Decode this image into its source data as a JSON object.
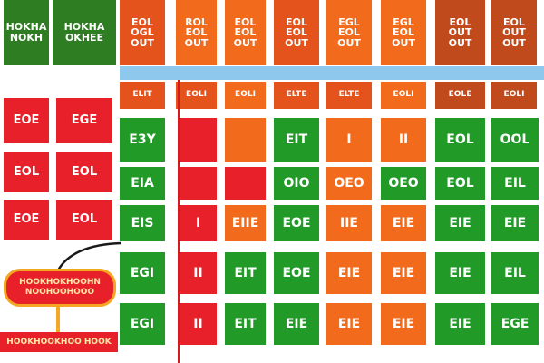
{
  "top_left": [
    {
      "label": "HOKHA\nNOKH"
    },
    {
      "label": "HOKHA\nOKHEE"
    }
  ],
  "columns": [
    {
      "header": "EOL\nOGL\nOUT",
      "sub": "ELIT"
    },
    {
      "header": "ROL\nEOL\nOUT",
      "sub": "EOLI"
    },
    {
      "header": "EOL\nEOL\nOUT",
      "sub": "EOLI"
    },
    {
      "header": "EOL\nEOL\nOUT",
      "sub": "ELTE"
    },
    {
      "header": "EGL\nEOL\nOUT",
      "sub": "ELTE"
    },
    {
      "header": "EGL\nEOL\nOUT",
      "sub": "EOLI"
    },
    {
      "header": "EOL\nOUT\nOUT",
      "sub": "EOLE"
    },
    {
      "header": "EOL\nOUT\nOUT",
      "sub": "EOLI"
    }
  ],
  "row_labels": [
    {
      "left": "EOE",
      "right": "EGE"
    },
    {
      "left": "EOL",
      "right": "EOL"
    },
    {
      "left": "EOE",
      "right": "EOL"
    }
  ],
  "rows": [
    [
      "E3Y",
      "",
      "",
      "EIT",
      "I",
      "II",
      "EOL",
      "OOL"
    ],
    [
      "EIA",
      "",
      "",
      "OIO",
      "OEO",
      "OEO",
      "EOL",
      "EIL"
    ],
    [
      "EIS",
      "I",
      "EIIE",
      "EOE",
      "IIE",
      "EIE",
      "EIE",
      "EIE"
    ],
    [
      "EGI",
      "II",
      "EIT",
      "EOE",
      "EIE",
      "EIE",
      "EIE",
      "EIL"
    ],
    [
      "EGI",
      "II",
      "EIT",
      "EIE",
      "EIE",
      "EIE",
      "EIE",
      "EGE"
    ]
  ],
  "callout": {
    "line1": "HOOKHOKHOOHN",
    "line2": "NOOHOOHOOO"
  },
  "bottom_strip": "HOOKHOOKHOO HOOK",
  "colors": {
    "header": "#e5531c",
    "header_green": "#2f7d22",
    "accent_blue": "#8ec8ec",
    "red": "#e8202a",
    "orange": "#f26b1d",
    "green": "#219a28"
  }
}
